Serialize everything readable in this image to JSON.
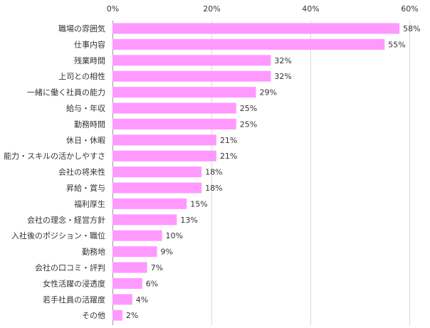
{
  "chart_data": {
    "type": "bar",
    "orientation": "horizontal",
    "title": "",
    "xlabel": "",
    "ylabel": "",
    "xlim": [
      0,
      60
    ],
    "ticks": [
      0,
      20,
      40,
      60
    ],
    "tick_labels": [
      "0%",
      "20%",
      "40%",
      "60%"
    ],
    "grid": true,
    "bar_color": "#ff99ff",
    "categories": [
      "職場の雰囲気",
      "仕事内容",
      "残業時間",
      "上司との相性",
      "一緒に働く社員の能力",
      "給与・年収",
      "勤務時間",
      "休日・休暇",
      "能力・スキルの活かしやすさ",
      "会社の将来性",
      "昇給・賞与",
      "福利厚生",
      "会社の理念・経営方針",
      "入社後のポジション・職位",
      "勤務地",
      "会社の口コミ・評判",
      "女性活躍の浸透度",
      "若手社員の活躍度",
      "その他"
    ],
    "values": [
      58,
      55,
      32,
      32,
      29,
      25,
      25,
      21,
      21,
      18,
      18,
      15,
      13,
      10,
      9,
      7,
      6,
      4,
      2
    ],
    "value_labels": [
      "58%",
      "55%",
      "32%",
      "32%",
      "29%",
      "25%",
      "25%",
      "21%",
      "21%",
      "18%",
      "18%",
      "15%",
      "13%",
      "10%",
      "9%",
      "7%",
      "6%",
      "4%",
      "2%"
    ]
  }
}
